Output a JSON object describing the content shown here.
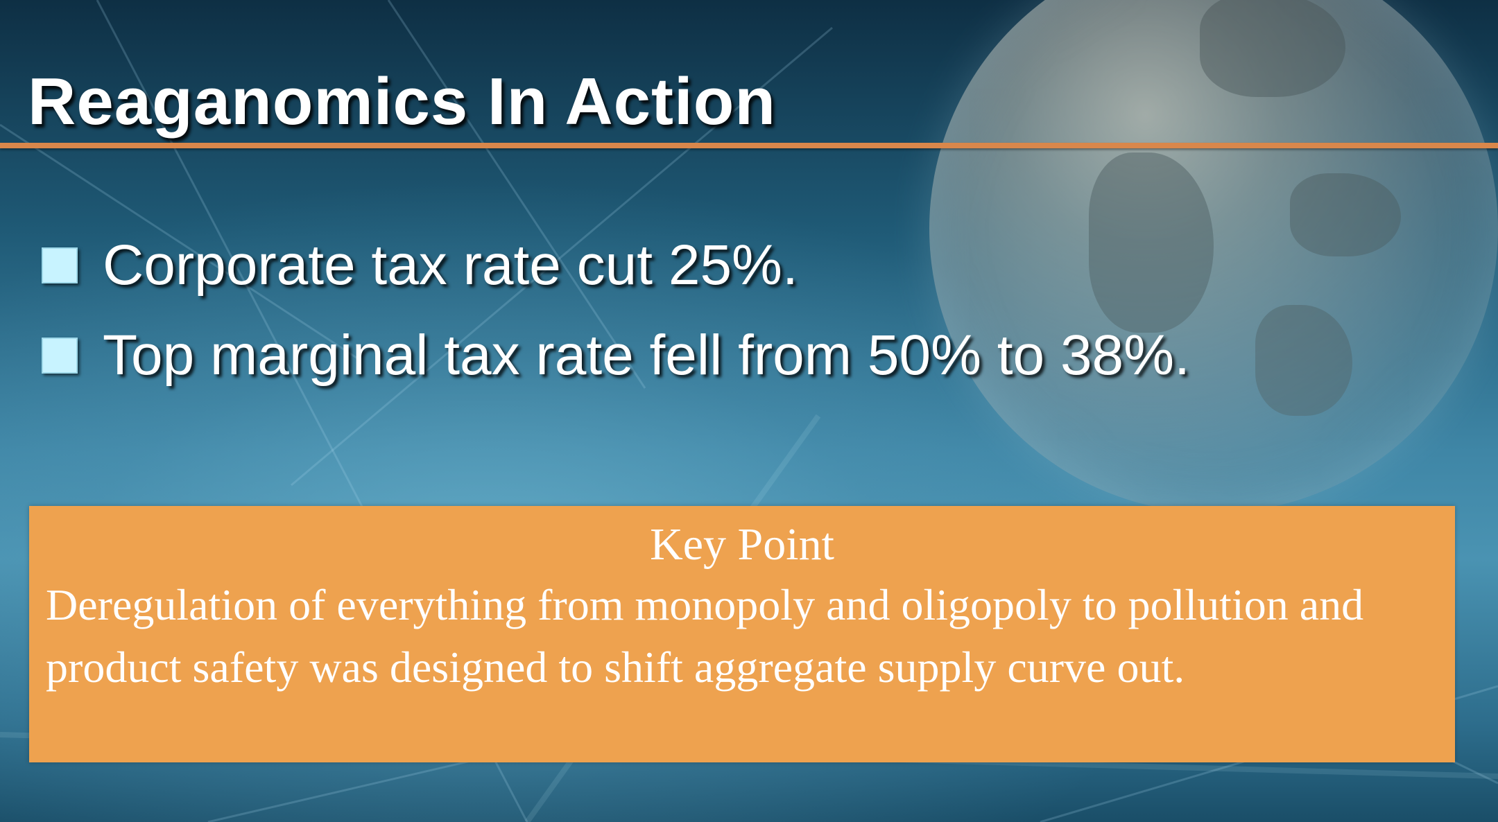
{
  "slide": {
    "title": "Reaganomics In Action",
    "bullets": [
      {
        "text": "Corporate tax rate cut 25%."
      },
      {
        "text": "Top marginal tax rate fell from 50% to 38%."
      }
    ],
    "key_point": {
      "heading": "Key Point",
      "body": "Deregulation of everything from monopoly and oligopoly to pollution and product safety was designed to shift aggregate supply curve out."
    }
  },
  "colors": {
    "accent_rule": "#d9874b",
    "key_point_box": "#eea24f",
    "bullet_marker": "#c8f3ff",
    "title_text": "#ffffff"
  },
  "icons": {
    "bullet": "square-bullet-icon",
    "background": "globe-background-image"
  }
}
